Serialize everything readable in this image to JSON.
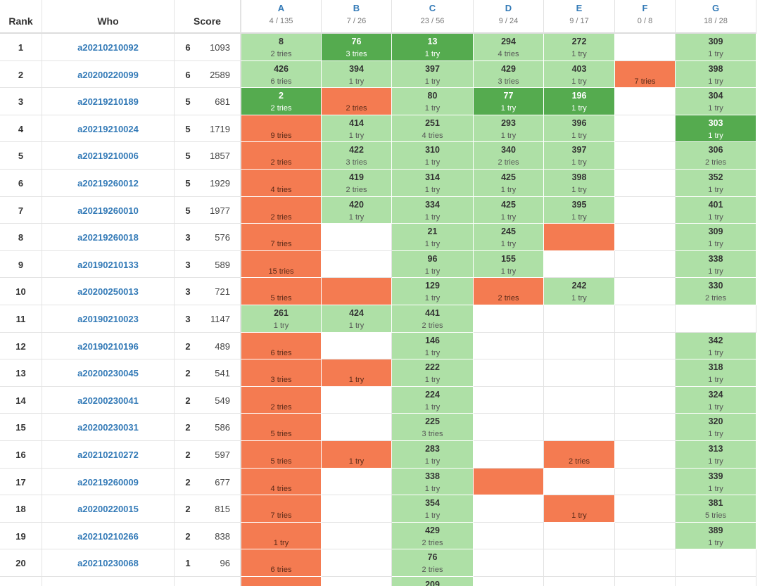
{
  "header": {
    "columns": [
      "Rank",
      "Who",
      "Score"
    ],
    "problems": [
      {
        "letter": "A",
        "stat": "4 / 135"
      },
      {
        "letter": "B",
        "stat": "7 / 26"
      },
      {
        "letter": "C",
        "stat": "23 / 56"
      },
      {
        "letter": "D",
        "stat": "9 / 24"
      },
      {
        "letter": "E",
        "stat": "9 / 17"
      },
      {
        "letter": "F",
        "stat": "0 / 8"
      },
      {
        "letter": "G",
        "stat": "18 / 28"
      }
    ]
  },
  "rows": [
    {
      "rank": 1,
      "who": "a20210210092",
      "solved": 6,
      "penalty": 1093,
      "cells": [
        {
          "state": "solved",
          "time": 8,
          "tries": "2 tries"
        },
        {
          "state": "first",
          "time": 76,
          "tries": "3 tries"
        },
        {
          "state": "first",
          "time": 13,
          "tries": "1 try"
        },
        {
          "state": "solved",
          "time": 294,
          "tries": "4 tries"
        },
        {
          "state": "solved",
          "time": 272,
          "tries": "1 try"
        },
        null,
        {
          "state": "solved",
          "time": 309,
          "tries": "1 try"
        }
      ]
    },
    {
      "rank": 2,
      "who": "a20200220099",
      "solved": 6,
      "penalty": 2589,
      "cells": [
        {
          "state": "solved",
          "time": 426,
          "tries": "6 tries"
        },
        {
          "state": "solved",
          "time": 394,
          "tries": "1 try"
        },
        {
          "state": "solved",
          "time": 397,
          "tries": "1 try"
        },
        {
          "state": "solved",
          "time": 429,
          "tries": "3 tries"
        },
        {
          "state": "solved",
          "time": 403,
          "tries": "1 try"
        },
        {
          "state": "wrong",
          "tries": "7 tries"
        },
        {
          "state": "solved",
          "time": 398,
          "tries": "1 try"
        }
      ]
    },
    {
      "rank": 3,
      "who": "a20219210189",
      "solved": 5,
      "penalty": 681,
      "cells": [
        {
          "state": "first",
          "time": 2,
          "tries": "2 tries"
        },
        {
          "state": "wrong",
          "tries": "2 tries"
        },
        {
          "state": "solved",
          "time": 80,
          "tries": "1 try"
        },
        {
          "state": "first",
          "time": 77,
          "tries": "1 try"
        },
        {
          "state": "first",
          "time": 196,
          "tries": "1 try"
        },
        null,
        {
          "state": "solved",
          "time": 304,
          "tries": "1 try"
        }
      ]
    },
    {
      "rank": 4,
      "who": "a20219210024",
      "solved": 5,
      "penalty": 1719,
      "cells": [
        {
          "state": "wrong",
          "tries": "9 tries"
        },
        {
          "state": "solved",
          "time": 414,
          "tries": "1 try"
        },
        {
          "state": "solved",
          "time": 251,
          "tries": "4 tries"
        },
        {
          "state": "solved",
          "time": 293,
          "tries": "1 try"
        },
        {
          "state": "solved",
          "time": 396,
          "tries": "1 try"
        },
        null,
        {
          "state": "first",
          "time": 303,
          "tries": "1 try"
        }
      ]
    },
    {
      "rank": 5,
      "who": "a20219210006",
      "solved": 5,
      "penalty": 1857,
      "cells": [
        {
          "state": "wrong",
          "tries": "2 tries"
        },
        {
          "state": "solved",
          "time": 422,
          "tries": "3 tries"
        },
        {
          "state": "solved",
          "time": 310,
          "tries": "1 try"
        },
        {
          "state": "solved",
          "time": 340,
          "tries": "2 tries"
        },
        {
          "state": "solved",
          "time": 397,
          "tries": "1 try"
        },
        null,
        {
          "state": "solved",
          "time": 306,
          "tries": "2 tries"
        }
      ]
    },
    {
      "rank": 6,
      "who": "a20219260012",
      "solved": 5,
      "penalty": 1929,
      "cells": [
        {
          "state": "wrong",
          "tries": "4 tries"
        },
        {
          "state": "solved",
          "time": 419,
          "tries": "2 tries"
        },
        {
          "state": "solved",
          "time": 314,
          "tries": "1 try"
        },
        {
          "state": "solved",
          "time": 425,
          "tries": "1 try"
        },
        {
          "state": "solved",
          "time": 398,
          "tries": "1 try"
        },
        null,
        {
          "state": "solved",
          "time": 352,
          "tries": "1 try"
        }
      ]
    },
    {
      "rank": 7,
      "who": "a20219260010",
      "solved": 5,
      "penalty": 1977,
      "cells": [
        {
          "state": "wrong",
          "tries": "2 tries"
        },
        {
          "state": "solved",
          "time": 420,
          "tries": "1 try"
        },
        {
          "state": "solved",
          "time": 334,
          "tries": "1 try"
        },
        {
          "state": "solved",
          "time": 425,
          "tries": "1 try"
        },
        {
          "state": "solved",
          "time": 395,
          "tries": "1 try"
        },
        null,
        {
          "state": "solved",
          "time": 401,
          "tries": "1 try"
        }
      ]
    },
    {
      "rank": 8,
      "who": "a20219260018",
      "solved": 3,
      "penalty": 576,
      "cells": [
        {
          "state": "wrong",
          "tries": "7 tries"
        },
        null,
        {
          "state": "solved",
          "time": 21,
          "tries": "1 try"
        },
        {
          "state": "solved",
          "time": 245,
          "tries": "1 try"
        },
        {
          "state": "wrong"
        },
        null,
        {
          "state": "solved",
          "time": 309,
          "tries": "1 try"
        }
      ]
    },
    {
      "rank": 9,
      "who": "a20190210133",
      "solved": 3,
      "penalty": 589,
      "cells": [
        {
          "state": "wrong",
          "tries": "15 tries"
        },
        null,
        {
          "state": "solved",
          "time": 96,
          "tries": "1 try"
        },
        {
          "state": "solved",
          "time": 155,
          "tries": "1 try"
        },
        null,
        null,
        {
          "state": "solved",
          "time": 338,
          "tries": "1 try"
        }
      ]
    },
    {
      "rank": 10,
      "who": "a20200250013",
      "solved": 3,
      "penalty": 721,
      "cells": [
        {
          "state": "wrong",
          "tries": "5 tries"
        },
        {
          "state": "wrong"
        },
        {
          "state": "solved",
          "time": 129,
          "tries": "1 try"
        },
        {
          "state": "wrong",
          "tries": "2 tries"
        },
        {
          "state": "solved",
          "time": 242,
          "tries": "1 try"
        },
        null,
        {
          "state": "solved",
          "time": 330,
          "tries": "2 tries"
        }
      ]
    },
    {
      "rank": 11,
      "who": "a20190210023",
      "solved": 3,
      "penalty": 1147,
      "cells": [
        {
          "state": "solved",
          "time": 261,
          "tries": "1 try"
        },
        {
          "state": "solved",
          "time": 424,
          "tries": "1 try"
        },
        {
          "state": "solved",
          "time": 441,
          "tries": "2 tries"
        },
        null,
        null,
        null,
        null
      ]
    },
    {
      "rank": 12,
      "who": "a20190210196",
      "solved": 2,
      "penalty": 489,
      "cells": [
        {
          "state": "wrong",
          "tries": "6 tries"
        },
        null,
        {
          "state": "solved",
          "time": 146,
          "tries": "1 try"
        },
        null,
        null,
        null,
        {
          "state": "solved",
          "time": 342,
          "tries": "1 try"
        }
      ]
    },
    {
      "rank": 13,
      "who": "a20200230045",
      "solved": 2,
      "penalty": 541,
      "cells": [
        {
          "state": "wrong",
          "tries": "3 tries"
        },
        {
          "state": "wrong",
          "tries": "1 try"
        },
        {
          "state": "solved",
          "time": 222,
          "tries": "1 try"
        },
        null,
        null,
        null,
        {
          "state": "solved",
          "time": 318,
          "tries": "1 try"
        }
      ]
    },
    {
      "rank": 14,
      "who": "a20200230041",
      "solved": 2,
      "penalty": 549,
      "cells": [
        {
          "state": "wrong",
          "tries": "2 tries"
        },
        null,
        {
          "state": "solved",
          "time": 224,
          "tries": "1 try"
        },
        null,
        null,
        null,
        {
          "state": "solved",
          "time": 324,
          "tries": "1 try"
        }
      ]
    },
    {
      "rank": 15,
      "who": "a20200230031",
      "solved": 2,
      "penalty": 586,
      "cells": [
        {
          "state": "wrong",
          "tries": "5 tries"
        },
        null,
        {
          "state": "solved",
          "time": 225,
          "tries": "3 tries"
        },
        null,
        null,
        null,
        {
          "state": "solved",
          "time": 320,
          "tries": "1 try"
        }
      ]
    },
    {
      "rank": 16,
      "who": "a20210210272",
      "solved": 2,
      "penalty": 597,
      "cells": [
        {
          "state": "wrong",
          "tries": "5 tries"
        },
        {
          "state": "wrong",
          "tries": "1 try"
        },
        {
          "state": "solved",
          "time": 283,
          "tries": "1 try"
        },
        null,
        {
          "state": "wrong",
          "tries": "2 tries"
        },
        null,
        {
          "state": "solved",
          "time": 313,
          "tries": "1 try"
        }
      ]
    },
    {
      "rank": 17,
      "who": "a20219260009",
      "solved": 2,
      "penalty": 677,
      "cells": [
        {
          "state": "wrong",
          "tries": "4 tries"
        },
        null,
        {
          "state": "solved",
          "time": 338,
          "tries": "1 try"
        },
        {
          "state": "wrong"
        },
        null,
        null,
        {
          "state": "solved",
          "time": 339,
          "tries": "1 try"
        }
      ]
    },
    {
      "rank": 18,
      "who": "a20200220015",
      "solved": 2,
      "penalty": 815,
      "cells": [
        {
          "state": "wrong",
          "tries": "7 tries"
        },
        null,
        {
          "state": "solved",
          "time": 354,
          "tries": "1 try"
        },
        null,
        {
          "state": "wrong",
          "tries": "1 try"
        },
        null,
        {
          "state": "solved",
          "time": 381,
          "tries": "5 tries"
        }
      ]
    },
    {
      "rank": 19,
      "who": "a20210210266",
      "solved": 2,
      "penalty": 838,
      "cells": [
        {
          "state": "wrong",
          "tries": "1 try"
        },
        null,
        {
          "state": "solved",
          "time": 429,
          "tries": "2 tries"
        },
        null,
        null,
        null,
        {
          "state": "solved",
          "time": 389,
          "tries": "1 try"
        }
      ]
    },
    {
      "rank": 20,
      "who": "a20210230068",
      "solved": 1,
      "penalty": 96,
      "cells": [
        {
          "state": "wrong",
          "tries": "6 tries"
        },
        null,
        {
          "state": "solved",
          "time": 76,
          "tries": "2 tries"
        },
        null,
        null,
        null,
        null
      ]
    },
    {
      "cells": [
        {
          "state": "wrong"
        },
        null,
        {
          "state": "solved",
          "time": 209
        },
        null,
        null,
        null,
        null
      ]
    }
  ]
}
